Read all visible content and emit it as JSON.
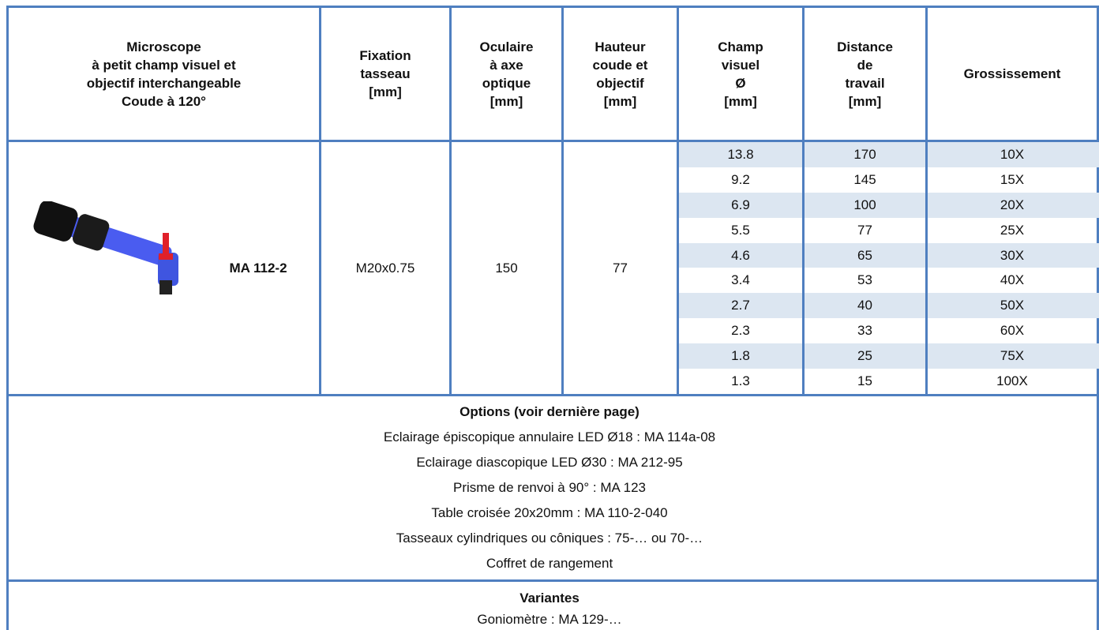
{
  "header": {
    "columns": [
      "Microscope\nà petit champ visuel et\nobjectif interchangeable\nCoude à 120°",
      "Fixation\ntasseau\n[mm]",
      "Oculaire\nà axe\noptique\n[mm]",
      "Hauteur\ncoude et\nobjectif\n[mm]",
      "Champ\nvisuel\nØ\n[mm]",
      "Distance\nde\ntravail\n[mm]",
      "Grossissement"
    ]
  },
  "product": {
    "name": "MA 112-2",
    "fixation": "M20x0.75",
    "oculaire": "150",
    "hauteur": "77"
  },
  "table": {
    "rows": [
      [
        "13.8",
        "170",
        "10X"
      ],
      [
        "9.2",
        "145",
        "15X"
      ],
      [
        "6.9",
        "100",
        "20X"
      ],
      [
        "5.5",
        "77",
        "25X"
      ],
      [
        "4.6",
        "65",
        "30X"
      ],
      [
        "3.4",
        "53",
        "40X"
      ],
      [
        "2.7",
        "40",
        "50X"
      ],
      [
        "2.3",
        "33",
        "60X"
      ],
      [
        "1.8",
        "25",
        "75X"
      ],
      [
        "1.3",
        "15",
        "100X"
      ]
    ]
  },
  "options": {
    "title": "Options (voir dernière page)",
    "items": [
      "Eclairage épiscopique annulaire LED Ø18 : MA 114a-08",
      "Eclairage diascopique LED Ø30 : MA 212-95",
      "Prisme de renvoi à 90° : MA 123",
      "Table croisée 20x20mm : MA 110-2-040",
      "Tasseaux cylindriques ou côniques : 75-… ou 70-…",
      "Coffret de rangement"
    ]
  },
  "variantes": {
    "title": "Variantes",
    "items": [
      "Goniomètre : MA 129-…"
    ]
  }
}
